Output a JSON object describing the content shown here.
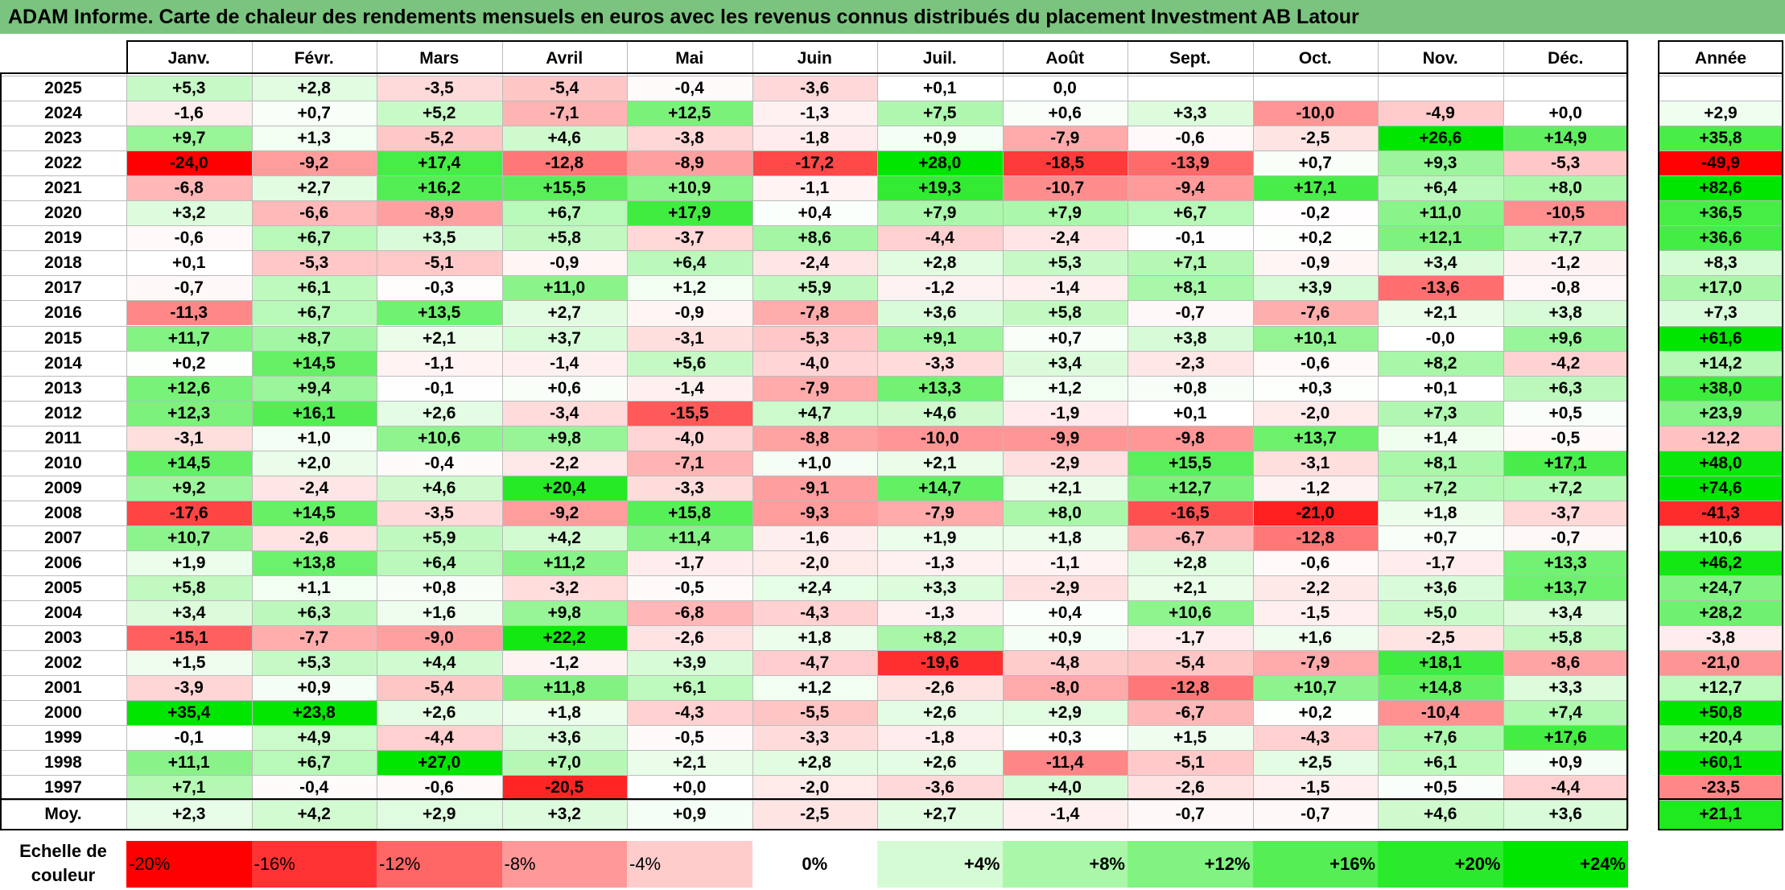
{
  "title": "ADAM Informe. Carte de chaleur des rendements mensuels en euros avec les revenus connus distribués du placement Investment AB Latour",
  "chart_data": {
    "type": "heatmap",
    "months": [
      "Janv.",
      "Févr.",
      "Mars",
      "Avril",
      "Mai",
      "Juin",
      "Juil.",
      "Août",
      "Sept.",
      "Oct.",
      "Nov.",
      "Déc."
    ],
    "year_header": "Année",
    "rows": [
      {
        "year": "2025",
        "values": [
          "+5,3",
          "+2,8",
          "-3,5",
          "-5,4",
          "-0,4",
          "-3,6",
          "+0,1",
          "0,0",
          "",
          "",
          "",
          ""
        ],
        "annual": ""
      },
      {
        "year": "2024",
        "values": [
          "-1,6",
          "+0,7",
          "+5,2",
          "-7,1",
          "+12,5",
          "-1,3",
          "+7,5",
          "+0,6",
          "+3,3",
          "-10,0",
          "-4,9",
          "+0,0"
        ],
        "annual": "+2,9"
      },
      {
        "year": "2023",
        "values": [
          "+9,7",
          "+1,3",
          "-5,2",
          "+4,6",
          "-3,8",
          "-1,8",
          "+0,9",
          "-7,9",
          "-0,6",
          "-2,5",
          "+26,6",
          "+14,9"
        ],
        "annual": "+35,8"
      },
      {
        "year": "2022",
        "values": [
          "-24,0",
          "-9,2",
          "+17,4",
          "-12,8",
          "-8,9",
          "-17,2",
          "+28,0",
          "-18,5",
          "-13,9",
          "+0,7",
          "+9,3",
          "-5,3"
        ],
        "annual": "-49,9"
      },
      {
        "year": "2021",
        "values": [
          "-6,8",
          "+2,7",
          "+16,2",
          "+15,5",
          "+10,9",
          "-1,1",
          "+19,3",
          "-10,7",
          "-9,4",
          "+17,1",
          "+6,4",
          "+8,0"
        ],
        "annual": "+82,6"
      },
      {
        "year": "2020",
        "values": [
          "+3,2",
          "-6,6",
          "-8,9",
          "+6,7",
          "+17,9",
          "+0,4",
          "+7,9",
          "+7,9",
          "+6,7",
          "-0,2",
          "+11,0",
          "-10,5"
        ],
        "annual": "+36,5"
      },
      {
        "year": "2019",
        "values": [
          "-0,6",
          "+6,7",
          "+3,5",
          "+5,8",
          "-3,7",
          "+8,6",
          "-4,4",
          "-2,4",
          "-0,1",
          "+0,2",
          "+12,1",
          "+7,7"
        ],
        "annual": "+36,6"
      },
      {
        "year": "2018",
        "values": [
          "+0,1",
          "-5,3",
          "-5,1",
          "-0,9",
          "+6,4",
          "-2,4",
          "+2,8",
          "+5,3",
          "+7,1",
          "-0,9",
          "+3,4",
          "-1,2"
        ],
        "annual": "+8,3"
      },
      {
        "year": "2017",
        "values": [
          "-0,7",
          "+6,1",
          "-0,3",
          "+11,0",
          "+1,2",
          "+5,9",
          "-1,2",
          "-1,4",
          "+8,1",
          "+3,9",
          "-13,6",
          "-0,8"
        ],
        "annual": "+17,0"
      },
      {
        "year": "2016",
        "values": [
          "-11,3",
          "+6,7",
          "+13,5",
          "+2,7",
          "-0,9",
          "-7,8",
          "+3,6",
          "+5,8",
          "-0,7",
          "-7,6",
          "+2,1",
          "+3,8"
        ],
        "annual": "+7,3"
      },
      {
        "year": "2015",
        "values": [
          "+11,7",
          "+8,7",
          "+2,1",
          "+3,7",
          "-3,1",
          "-5,3",
          "+9,1",
          "+0,7",
          "+3,8",
          "+10,1",
          "-0,0",
          "+9,6"
        ],
        "annual": "+61,6"
      },
      {
        "year": "2014",
        "values": [
          "+0,2",
          "+14,5",
          "-1,1",
          "-1,4",
          "+5,6",
          "-4,0",
          "-3,3",
          "+3,4",
          "-2,3",
          "-0,6",
          "+8,2",
          "-4,2"
        ],
        "annual": "+14,2"
      },
      {
        "year": "2013",
        "values": [
          "+12,6",
          "+9,4",
          "-0,1",
          "+0,6",
          "-1,4",
          "-7,9",
          "+13,3",
          "+1,2",
          "+0,8",
          "+0,3",
          "+0,1",
          "+6,3"
        ],
        "annual": "+38,0"
      },
      {
        "year": "2012",
        "values": [
          "+12,3",
          "+16,1",
          "+2,6",
          "-3,4",
          "-15,5",
          "+4,7",
          "+4,6",
          "-1,9",
          "+0,1",
          "-2,0",
          "+7,3",
          "+0,5"
        ],
        "annual": "+23,9"
      },
      {
        "year": "2011",
        "values": [
          "-3,1",
          "+1,0",
          "+10,6",
          "+9,8",
          "-4,0",
          "-8,8",
          "-10,0",
          "-9,9",
          "-9,8",
          "+13,7",
          "+1,4",
          "-0,5"
        ],
        "annual": "-12,2"
      },
      {
        "year": "2010",
        "values": [
          "+14,5",
          "+2,0",
          "-0,4",
          "-2,2",
          "-7,1",
          "+1,0",
          "+2,1",
          "-2,9",
          "+15,5",
          "-3,1",
          "+8,1",
          "+17,1"
        ],
        "annual": "+48,0"
      },
      {
        "year": "2009",
        "values": [
          "+9,2",
          "-2,4",
          "+4,6",
          "+20,4",
          "-3,3",
          "-9,1",
          "+14,7",
          "+2,1",
          "+12,7",
          "-1,2",
          "+7,2",
          "+7,2"
        ],
        "annual": "+74,6"
      },
      {
        "year": "2008",
        "values": [
          "-17,6",
          "+14,5",
          "-3,5",
          "-9,2",
          "+15,8",
          "-9,3",
          "-7,9",
          "+8,0",
          "-16,5",
          "-21,0",
          "+1,8",
          "-3,7"
        ],
        "annual": "-41,3"
      },
      {
        "year": "2007",
        "values": [
          "+10,7",
          "-2,6",
          "+5,9",
          "+4,2",
          "+11,4",
          "-1,6",
          "+1,9",
          "+1,8",
          "-6,7",
          "-12,8",
          "+0,7",
          "-0,7"
        ],
        "annual": "+10,6"
      },
      {
        "year": "2006",
        "values": [
          "+1,9",
          "+13,8",
          "+6,4",
          "+11,2",
          "-1,7",
          "-2,0",
          "-1,3",
          "-1,1",
          "+2,8",
          "-0,6",
          "-1,7",
          "+13,3"
        ],
        "annual": "+46,2"
      },
      {
        "year": "2005",
        "values": [
          "+5,8",
          "+1,1",
          "+0,8",
          "-3,2",
          "-0,5",
          "+2,4",
          "+3,3",
          "-2,9",
          "+2,1",
          "-2,2",
          "+3,6",
          "+13,7"
        ],
        "annual": "+24,7"
      },
      {
        "year": "2004",
        "values": [
          "+3,4",
          "+6,3",
          "+1,6",
          "+9,8",
          "-6,8",
          "-4,3",
          "-1,3",
          "+0,4",
          "+10,6",
          "-1,5",
          "+5,0",
          "+3,4"
        ],
        "annual": "+28,2"
      },
      {
        "year": "2003",
        "values": [
          "-15,1",
          "-7,7",
          "-9,0",
          "+22,2",
          "-2,6",
          "+1,8",
          "+8,2",
          "+0,9",
          "-1,7",
          "+1,6",
          "-2,5",
          "+5,8"
        ],
        "annual": "-3,8"
      },
      {
        "year": "2002",
        "values": [
          "+1,5",
          "+5,3",
          "+4,4",
          "-1,2",
          "+3,9",
          "-4,7",
          "-19,6",
          "-4,8",
          "-5,4",
          "-7,9",
          "+18,1",
          "-8,6"
        ],
        "annual": "-21,0"
      },
      {
        "year": "2001",
        "values": [
          "-3,9",
          "+0,9",
          "-5,4",
          "+11,8",
          "+6,1",
          "+1,2",
          "-2,6",
          "-8,0",
          "-12,8",
          "+10,7",
          "+14,8",
          "+3,3"
        ],
        "annual": "+12,7"
      },
      {
        "year": "2000",
        "values": [
          "+35,4",
          "+23,8",
          "+2,6",
          "+1,8",
          "-4,3",
          "-5,5",
          "+2,6",
          "+2,9",
          "-6,7",
          "+0,2",
          "-10,4",
          "+7,4"
        ],
        "annual": "+50,8"
      },
      {
        "year": "1999",
        "values": [
          "-0,1",
          "+4,9",
          "-4,4",
          "+3,6",
          "-0,5",
          "-3,3",
          "-1,8",
          "+0,3",
          "+1,5",
          "-4,3",
          "+7,6",
          "+17,6"
        ],
        "annual": "+20,4"
      },
      {
        "year": "1998",
        "values": [
          "+11,1",
          "+6,7",
          "+27,0",
          "+7,0",
          "+2,1",
          "+2,8",
          "+2,6",
          "-11,4",
          "-5,1",
          "+2,5",
          "+6,1",
          "+0,9"
        ],
        "annual": "+60,1"
      },
      {
        "year": "1997",
        "values": [
          "+7,1",
          "-0,4",
          "-0,6",
          "-20,5",
          "+0,0",
          "-2,0",
          "-3,6",
          "+4,0",
          "-2,6",
          "-1,5",
          "+0,5",
          "-4,4"
        ],
        "annual": "-23,5"
      }
    ],
    "average": {
      "label": "Moy.",
      "values": [
        "+2,3",
        "+4,2",
        "+2,9",
        "+3,2",
        "+0,9",
        "-2,5",
        "+2,7",
        "-1,4",
        "-0,7",
        "-0,7",
        "+4,6",
        "+3,6"
      ],
      "annual": "+21,1"
    },
    "legend": {
      "label_line1": "Echelle de",
      "label_line2": "couleur",
      "steps": [
        "-20%",
        "-16%",
        "-12%",
        "-8%",
        "-4%",
        "0%",
        "+4%",
        "+8%",
        "+12%",
        "+16%",
        "+20%",
        "+24%"
      ]
    },
    "colors": {
      "negative": "#ff0000",
      "positive": "#00e600",
      "neutral": "#ffffff",
      "title_bg": "#7bc47f"
    }
  }
}
